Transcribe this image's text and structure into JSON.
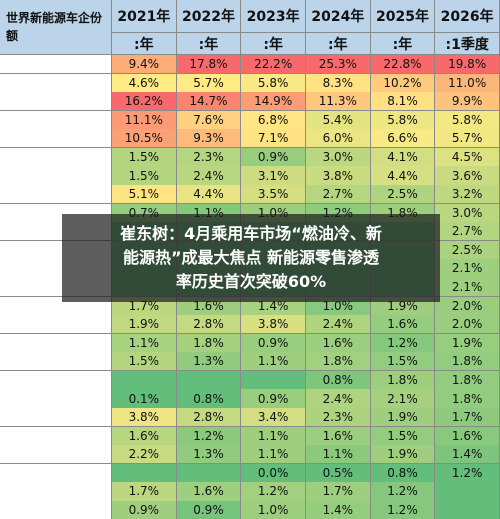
{
  "table": {
    "corner": "世界新能源车企份额",
    "header": [
      "2021年",
      "2022年",
      "2023年",
      "2024年",
      "2025年",
      "2026年"
    ],
    "subheader": [
      ":年",
      ":年",
      ":年",
      ":年",
      ":年",
      ":1季度"
    ],
    "rows": [
      [
        "9.4%",
        "17.8%",
        "22.2%",
        "25.3%",
        "22.8%",
        "19.8%"
      ],
      [
        "4.6%",
        "5.7%",
        "5.8%",
        "8.3%",
        "10.2%",
        "11.0%"
      ],
      [
        "16.2%",
        "14.7%",
        "14.9%",
        "11.3%",
        "8.1%",
        "9.9%"
      ],
      [
        "11.1%",
        "7.6%",
        "6.8%",
        "5.4%",
        "5.8%",
        "5.8%"
      ],
      [
        "10.5%",
        "9.3%",
        "7.1%",
        "6.0%",
        "6.6%",
        "5.7%"
      ],
      [
        "1.5%",
        "2.3%",
        "0.9%",
        "3.0%",
        "4.1%",
        "4.5%"
      ],
      [
        "1.5%",
        "2.4%",
        "3.1%",
        "3.8%",
        "4.4%",
        "3.6%"
      ],
      [
        "5.1%",
        "4.4%",
        "3.5%",
        "2.7%",
        "2.5%",
        "3.2%"
      ],
      [
        "0.7%",
        "1.1%",
        "1.0%",
        "1.2%",
        "1.8%",
        "3.0%"
      ],
      [
        null,
        null,
        null,
        null,
        null,
        "2.7%"
      ],
      [
        null,
        null,
        null,
        null,
        null,
        "2.5%"
      ],
      [
        null,
        null,
        null,
        null,
        null,
        "2.1%"
      ],
      [
        null,
        null,
        null,
        null,
        null,
        "2.1%"
      ],
      [
        "1.7%",
        "1.6%",
        "1.4%",
        "1.0%",
        "1.9%",
        "2.0%"
      ],
      [
        "1.9%",
        "2.8%",
        "3.8%",
        "2.4%",
        "1.6%",
        "2.0%"
      ],
      [
        "1.1%",
        "1.8%",
        "0.9%",
        "1.6%",
        "1.2%",
        "1.9%"
      ],
      [
        "1.5%",
        "1.3%",
        "1.1%",
        "1.8%",
        "1.5%",
        "1.8%"
      ],
      [
        null,
        null,
        null,
        "0.8%",
        "1.8%",
        "1.8%"
      ],
      [
        "0.1%",
        "0.8%",
        "0.9%",
        "2.4%",
        "2.1%",
        "1.8%"
      ],
      [
        "3.8%",
        "2.8%",
        "3.4%",
        "2.3%",
        "1.9%",
        "1.7%"
      ],
      [
        "1.6%",
        "1.2%",
        "1.1%",
        "1.6%",
        "1.5%",
        "1.6%"
      ],
      [
        "2.2%",
        "1.3%",
        "1.1%",
        "1.1%",
        "1.9%",
        "1.4%"
      ],
      [
        null,
        null,
        "0.0%",
        "0.5%",
        "0.8%",
        "1.2%"
      ],
      [
        "1.7%",
        "1.6%",
        "1.2%",
        "1.7%",
        "1.2%",
        null
      ],
      [
        "0.9%",
        "0.9%",
        "1.0%",
        "1.4%",
        "1.2%",
        null
      ]
    ]
  },
  "overlay": {
    "lines": [
      "崔东树：4月乘用车市场“燃油冷、新",
      "能源热”成最大焦点 新能源零售渗透",
      "率历史首次突破60%"
    ]
  }
}
